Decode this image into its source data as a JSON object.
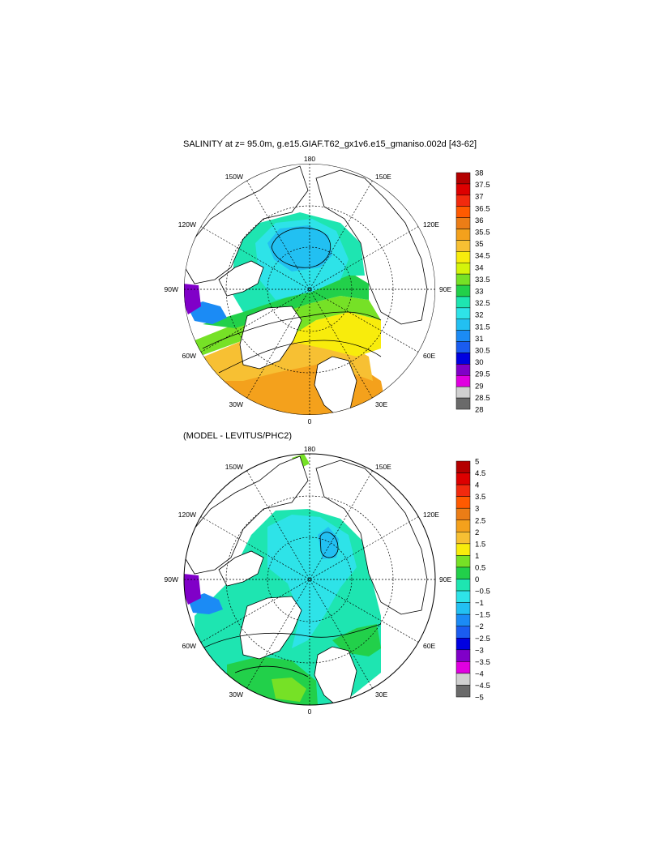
{
  "panels": [
    {
      "title": "SALINITY at z=  95.0m, g.e15.GIAF.T62_gx1v6.e15_gmaniso.002d [43-62]",
      "meridian_labels": {
        "top": "180",
        "bottom": "0",
        "left": "90W",
        "right": "90E",
        "w150": "150W",
        "e150": "150E",
        "w120": "120W",
        "e120": "120E",
        "w60": "60W",
        "e60": "60E",
        "w30": "30W",
        "e30": "30E"
      },
      "colorbar": {
        "labels": [
          "38",
          "37.5",
          "37",
          "36.5",
          "36",
          "35.5",
          "35",
          "34.5",
          "34",
          "33.5",
          "33",
          "32.5",
          "32",
          "31.5",
          "31",
          "30.5",
          "30",
          "29.5",
          "29",
          "28.5",
          "28"
        ],
        "colors": [
          "#b40000",
          "#dd0000",
          "#f22a0e",
          "#ff5a00",
          "#ec7d16",
          "#f4a11c",
          "#f7c033",
          "#f8ec0c",
          "#d4f40a",
          "#76e126",
          "#22d04a",
          "#1ee5b1",
          "#2ee3e8",
          "#22c0f2",
          "#1b8bf5",
          "#1a5cf0",
          "#0000e0",
          "#8000c8",
          "#e000e0",
          "#d0d0d0",
          "#6a6a6a"
        ]
      }
    },
    {
      "title": "(MODEL - LEVITUS/PHC2)",
      "meridian_labels": {
        "top": "180",
        "bottom": "0",
        "left": "90W",
        "right": "90E",
        "w150": "150W",
        "e150": "150E",
        "w120": "120W",
        "e120": "120E",
        "w60": "60W",
        "e60": "60E",
        "w30": "30W",
        "e30": "30E"
      },
      "colorbar": {
        "labels": [
          "5",
          "4.5",
          "4",
          "3.5",
          "3",
          "2.5",
          "2",
          "1.5",
          "1",
          "0.5",
          "0",
          "−0.5",
          "−1",
          "−1.5",
          "−2",
          "−2.5",
          "−3",
          "−3.5",
          "−4",
          "−4.5",
          "−5"
        ],
        "colors": [
          "#b40000",
          "#dd0000",
          "#f22a0e",
          "#ff5a00",
          "#ec7d16",
          "#f4a11c",
          "#f7c033",
          "#f8ec0c",
          "#76e126",
          "#22d04a",
          "#1ee5b1",
          "#2ee3e8",
          "#22c0f2",
          "#1b8bf5",
          "#1a5cf0",
          "#0000e0",
          "#8000c8",
          "#e000e0",
          "#d0d0d0",
          "#6a6a6a"
        ]
      }
    }
  ]
}
